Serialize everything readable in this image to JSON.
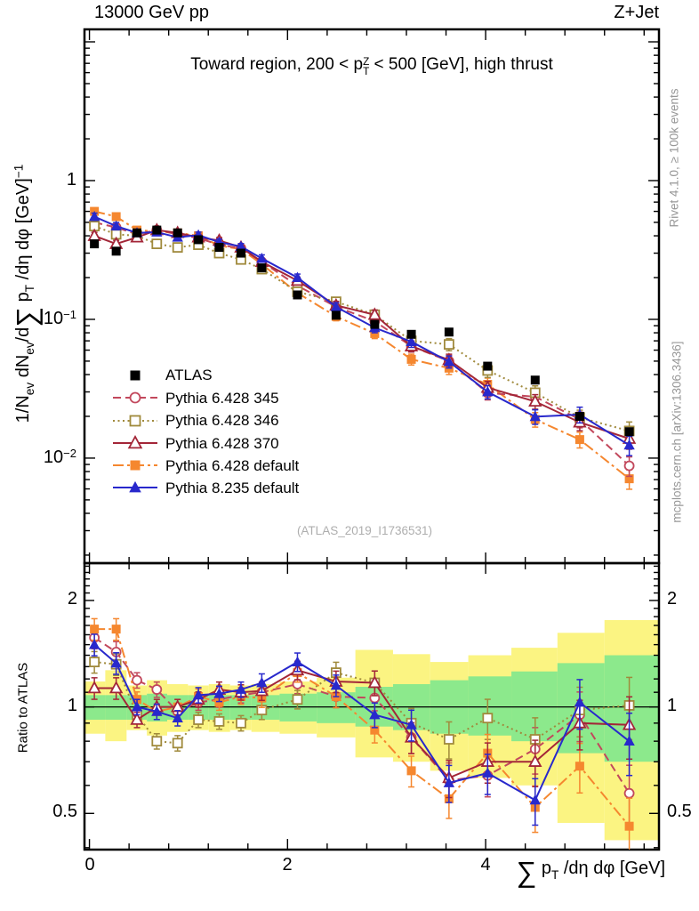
{
  "header": {
    "left": "13000 GeV pp",
    "right": "Z+Jet"
  },
  "side_texts": {
    "top_right": "Rivet 4.1.0, ≥ 100k events",
    "bottom_right": "mcplots.cern.ch [arXiv:1306.3436]"
  },
  "watermark": "(ATLAS_2019_I1736531)",
  "chart_data": {
    "type": "line",
    "title_parts": {
      "pre": "Toward region, 200 < p",
      "sup": "Z",
      "sub": "T",
      "post": " < 500 [GeV], high thrust"
    },
    "xlabel_parts": {
      "sigma": "∑",
      "p": " p",
      "sub": "T",
      "post": " /dη dφ [GeV]"
    },
    "ylabel_parts": {
      "pre1": "1/N",
      "sub1": "ev",
      "pre2": " dN",
      "sub2": "ev",
      "pre3": "/d",
      "sigma": "∑",
      "pre4": " p",
      "sub3": "T",
      "post": " /dη dφ  [GeV]",
      "sup": "−1"
    },
    "ratio_ylabel": "Ratio to ATLAS",
    "legend_position": "left-middle",
    "grid": false,
    "axes": {
      "x": {
        "min": -0.05,
        "max": 5.75,
        "minor_step": 0.4,
        "major_ticks": [
          {
            "v": 0,
            "label": "0"
          },
          {
            "v": 2,
            "label": "2"
          },
          {
            "v": 4,
            "label": "4"
          }
        ]
      },
      "y_main": {
        "scale": "log",
        "min": 0.00175,
        "max": 12.3,
        "ticks": [
          {
            "v": 1,
            "base": "1",
            "exp": ""
          },
          {
            "v": 0.1,
            "base": "10",
            "exp": "−1"
          },
          {
            "v": 0.01,
            "base": "10",
            "exp": "−2"
          }
        ]
      },
      "y_ratio": {
        "scale": "log",
        "min": 0.395,
        "max": 2.55,
        "ticks": [
          {
            "v": 2,
            "label": "2"
          },
          {
            "v": 1,
            "label": "1"
          },
          {
            "v": 0.5,
            "label": "0.5"
          }
        ]
      }
    },
    "x": [
      0.05,
      0.27,
      0.48,
      0.68,
      0.89,
      1.1,
      1.31,
      1.53,
      1.74,
      2.1,
      2.49,
      2.88,
      3.25,
      3.63,
      4.02,
      4.5,
      4.95,
      5.45
    ],
    "series": [
      {
        "name": "ATLAS",
        "color": "#000000",
        "marker": "square-filled",
        "line": "none",
        "has_errors": false,
        "values": [
          0.35,
          0.31,
          0.42,
          0.44,
          0.42,
          0.375,
          0.33,
          0.3,
          0.235,
          0.15,
          0.107,
          0.092,
          0.078,
          0.081,
          0.046,
          0.0365,
          0.02,
          0.0155
        ],
        "ratio": null
      },
      {
        "name": "Pythia 6.428 345",
        "color": "#c2485c",
        "marker": "circle-open",
        "line": "dashed",
        "has_errors": true,
        "values": [
          0.5,
          0.46,
          0.41,
          0.44,
          0.41,
          0.385,
          0.345,
          0.325,
          0.26,
          0.175,
          0.123,
          0.097,
          0.064,
          0.05,
          0.0295,
          0.0277,
          0.019,
          0.0088
        ],
        "ratio": [
          1.57,
          1.43,
          1.19,
          1.12,
          0.97,
          1.03,
          1.05,
          1.08,
          1.1,
          1.16,
          1.07,
          1.06,
          0.82,
          0.62,
          0.64,
          0.76,
          0.95,
          0.57
        ]
      },
      {
        "name": "Pythia 6.428 346",
        "color": "#a08a3c",
        "marker": "square-open",
        "line": "dotted",
        "has_errors": true,
        "values": [
          0.47,
          0.41,
          0.4,
          0.35,
          0.33,
          0.345,
          0.3,
          0.27,
          0.23,
          0.158,
          0.134,
          0.108,
          0.07,
          0.066,
          0.0428,
          0.0296,
          0.0196,
          0.0157
        ],
        "ratio": [
          1.34,
          1.32,
          0.95,
          0.8,
          0.79,
          0.92,
          0.91,
          0.9,
          0.98,
          1.05,
          1.25,
          1.17,
          0.9,
          0.81,
          0.93,
          0.81,
          0.98,
          1.01
        ]
      },
      {
        "name": "Pythia 6.428 370",
        "color": "#a32638",
        "marker": "triangle-open",
        "line": "solid",
        "has_errors": true,
        "values": [
          0.4,
          0.35,
          0.39,
          0.44,
          0.42,
          0.39,
          0.37,
          0.33,
          0.26,
          0.19,
          0.126,
          0.108,
          0.064,
          0.051,
          0.0322,
          0.0256,
          0.0181,
          0.0138
        ],
        "ratio": [
          1.13,
          1.13,
          0.92,
          1.0,
          1.0,
          1.05,
          1.12,
          1.1,
          1.11,
          1.27,
          1.18,
          1.17,
          0.82,
          0.63,
          0.7,
          0.7,
          0.9,
          0.89
        ]
      },
      {
        "name": "Pythia 6.428 default",
        "color": "#f5872f",
        "marker": "square-filled",
        "line": "dashdot",
        "has_errors": true,
        "values": [
          0.6,
          0.55,
          0.44,
          0.43,
          0.42,
          0.4,
          0.34,
          0.32,
          0.25,
          0.155,
          0.105,
          0.079,
          0.0515,
          0.0445,
          0.034,
          0.019,
          0.0136,
          0.0071
        ],
        "ratio": [
          1.66,
          1.66,
          1.05,
          0.97,
          1.0,
          1.07,
          1.03,
          1.07,
          1.06,
          1.25,
          1.07,
          0.86,
          0.66,
          0.55,
          0.74,
          0.52,
          0.68,
          0.46
        ]
      },
      {
        "name": "Pythia 8.235 default",
        "color": "#2828cc",
        "marker": "triangle-filled",
        "line": "solid",
        "has_errors": true,
        "values": [
          0.55,
          0.47,
          0.42,
          0.425,
          0.39,
          0.405,
          0.36,
          0.335,
          0.275,
          0.2,
          0.123,
          0.087,
          0.069,
          0.0495,
          0.03,
          0.0199,
          0.0206,
          0.0124
        ],
        "ratio": [
          1.5,
          1.33,
          1.0,
          0.97,
          0.93,
          1.08,
          1.09,
          1.12,
          1.17,
          1.34,
          1.15,
          0.95,
          0.89,
          0.61,
          0.65,
          0.545,
          1.03,
          0.8
        ]
      }
    ],
    "err_frac_main": [
      0.06,
      0.06,
      0.05,
      0.05,
      0.05,
      0.05,
      0.05,
      0.05,
      0.06,
      0.06,
      0.07,
      0.08,
      0.09,
      0.1,
      0.11,
      0.12,
      0.13,
      0.16
    ],
    "err_frac_ratio": [
      0.07,
      0.07,
      0.05,
      0.05,
      0.05,
      0.05,
      0.05,
      0.05,
      0.06,
      0.06,
      0.07,
      0.08,
      0.1,
      0.12,
      0.13,
      0.15,
      0.16,
      0.2
    ],
    "bands": {
      "yellow": {
        "color": "#fbf482",
        "lo": [
          0.84,
          0.8,
          0.86,
          0.83,
          0.85,
          0.86,
          0.85,
          0.86,
          0.85,
          0.84,
          0.82,
          0.72,
          0.7,
          0.66,
          0.63,
          0.6,
          0.47,
          0.42
        ],
        "hi": [
          1.18,
          1.27,
          1.15,
          1.19,
          1.16,
          1.15,
          1.16,
          1.15,
          1.16,
          1.18,
          1.21,
          1.45,
          1.41,
          1.34,
          1.4,
          1.47,
          1.62,
          1.76
        ]
      },
      "green": {
        "color": "#8ce98c",
        "lo": [
          0.92,
          0.92,
          0.92,
          0.91,
          0.92,
          0.92,
          0.92,
          0.92,
          0.92,
          0.91,
          0.9,
          0.88,
          0.86,
          0.84,
          0.83,
          0.8,
          0.74,
          0.7
        ],
        "hi": [
          1.08,
          1.08,
          1.08,
          1.09,
          1.08,
          1.08,
          1.08,
          1.08,
          1.08,
          1.09,
          1.1,
          1.14,
          1.16,
          1.19,
          1.22,
          1.26,
          1.33,
          1.4
        ]
      }
    }
  }
}
